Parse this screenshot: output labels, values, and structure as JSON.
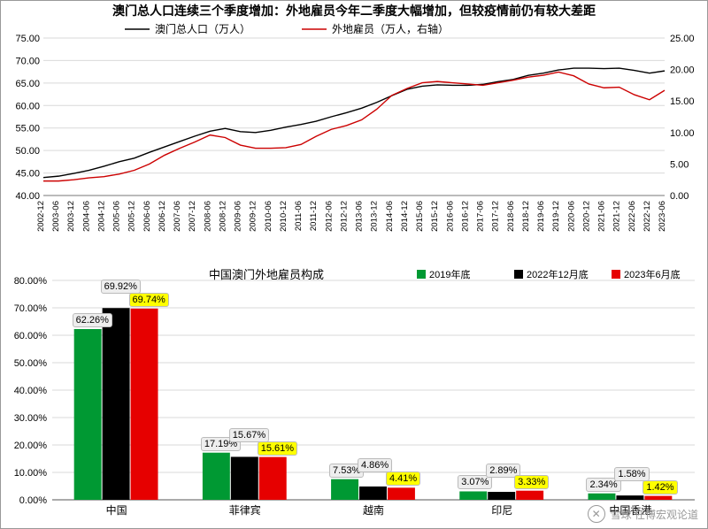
{
  "lineChart": {
    "type": "line-dual-axis",
    "title": "澳门总人口连续三个季度增加：外地雇员今年二季度大幅增加，但较疫情前仍有较大差距",
    "title_fontsize": 14,
    "title_weight": "bold",
    "legend": [
      {
        "label": "澳门总人口（万人）",
        "color": "#000000"
      },
      {
        "label": "外地雇员（万人，右轴）",
        "color": "#cc0000"
      }
    ],
    "ylim_left": [
      40,
      75
    ],
    "ytick_step_left": 5,
    "ylim_right": [
      0,
      25
    ],
    "ytick_step_right": 5,
    "grid_color": "#d9d9d9",
    "background": "#ffffff",
    "line_width": 1.4,
    "x_labels": [
      "2002-12",
      "2003-06",
      "2003-12",
      "2004-06",
      "2004-12",
      "2005-06",
      "2005-12",
      "2006-06",
      "2006-12",
      "2007-06",
      "2007-12",
      "2008-06",
      "2008-12",
      "2009-06",
      "2009-12",
      "2010-06",
      "2010-12",
      "2011-06",
      "2011-12",
      "2012-06",
      "2012-12",
      "2013-06",
      "2013-12",
      "2014-06",
      "2014-12",
      "2015-06",
      "2015-12",
      "2016-06",
      "2016-12",
      "2017-06",
      "2017-12",
      "2018-06",
      "2018-12",
      "2019-06",
      "2019-12",
      "2020-06",
      "2020-12",
      "2021-06",
      "2021-12",
      "2022-06",
      "2022-12",
      "2023-06"
    ],
    "series": [
      {
        "name": "pop",
        "axis": "left",
        "color": "#000000",
        "values": [
          44.0,
          44.3,
          44.9,
          45.6,
          46.5,
          47.5,
          48.3,
          49.6,
          50.8,
          52.0,
          53.2,
          54.3,
          54.9,
          54.2,
          54.0,
          54.5,
          55.2,
          55.8,
          56.5,
          57.5,
          58.4,
          59.4,
          60.7,
          62.2,
          63.6,
          64.3,
          64.6,
          64.5,
          64.5,
          64.7,
          65.3,
          65.8,
          66.7,
          67.2,
          67.9,
          68.3,
          68.3,
          68.2,
          68.3,
          67.8,
          67.2,
          67.7
        ]
      },
      {
        "name": "foreign",
        "axis": "right",
        "color": "#cc0000",
        "values": [
          2.3,
          2.3,
          2.5,
          2.8,
          3.0,
          3.4,
          4.0,
          5.0,
          6.4,
          7.5,
          8.5,
          9.6,
          9.2,
          8.0,
          7.5,
          7.5,
          7.6,
          8.1,
          9.4,
          10.5,
          11.1,
          12.0,
          13.7,
          15.9,
          17.0,
          17.9,
          18.1,
          17.9,
          17.7,
          17.5,
          17.9,
          18.3,
          18.8,
          19.1,
          19.6,
          19.0,
          17.7,
          17.1,
          17.2,
          16.0,
          15.2,
          16.7
        ]
      }
    ]
  },
  "barChart": {
    "type": "grouped-bar",
    "title": "中国澳门外地雇员构成",
    "title_fontsize": 13,
    "title_weight": "normal",
    "ylim": [
      0,
      80
    ],
    "ytick_step": 10,
    "y_suffix": "%",
    "grid_color": "#d9d9d9",
    "background": "#ffffff",
    "bar_group_gap": 0.35,
    "bar_width": 0.22,
    "legend": [
      {
        "label": "2019年底",
        "color": "#009933",
        "marker": "square"
      },
      {
        "label": "2022年12月底",
        "color": "#000000",
        "marker": "square"
      },
      {
        "label": "2023年6月底",
        "color": "#e60000",
        "marker": "square"
      }
    ],
    "categories": [
      "中国",
      "菲律宾",
      "越南",
      "印尼",
      "中国香港"
    ],
    "groups": [
      {
        "name": "2019",
        "color": "#009933",
        "values": [
          62.26,
          17.19,
          7.53,
          3.07,
          2.34
        ]
      },
      {
        "name": "2022",
        "color": "#000000",
        "values": [
          69.92,
          15.67,
          4.86,
          2.89,
          1.58
        ]
      },
      {
        "name": "2023",
        "color": "#e60000",
        "values": [
          69.74,
          15.61,
          4.41,
          3.33,
          1.42
        ],
        "highlight": true
      }
    ]
  },
  "watermark": {
    "text": "雪球  任博宏观论道",
    "icon": "snowball-icon"
  }
}
